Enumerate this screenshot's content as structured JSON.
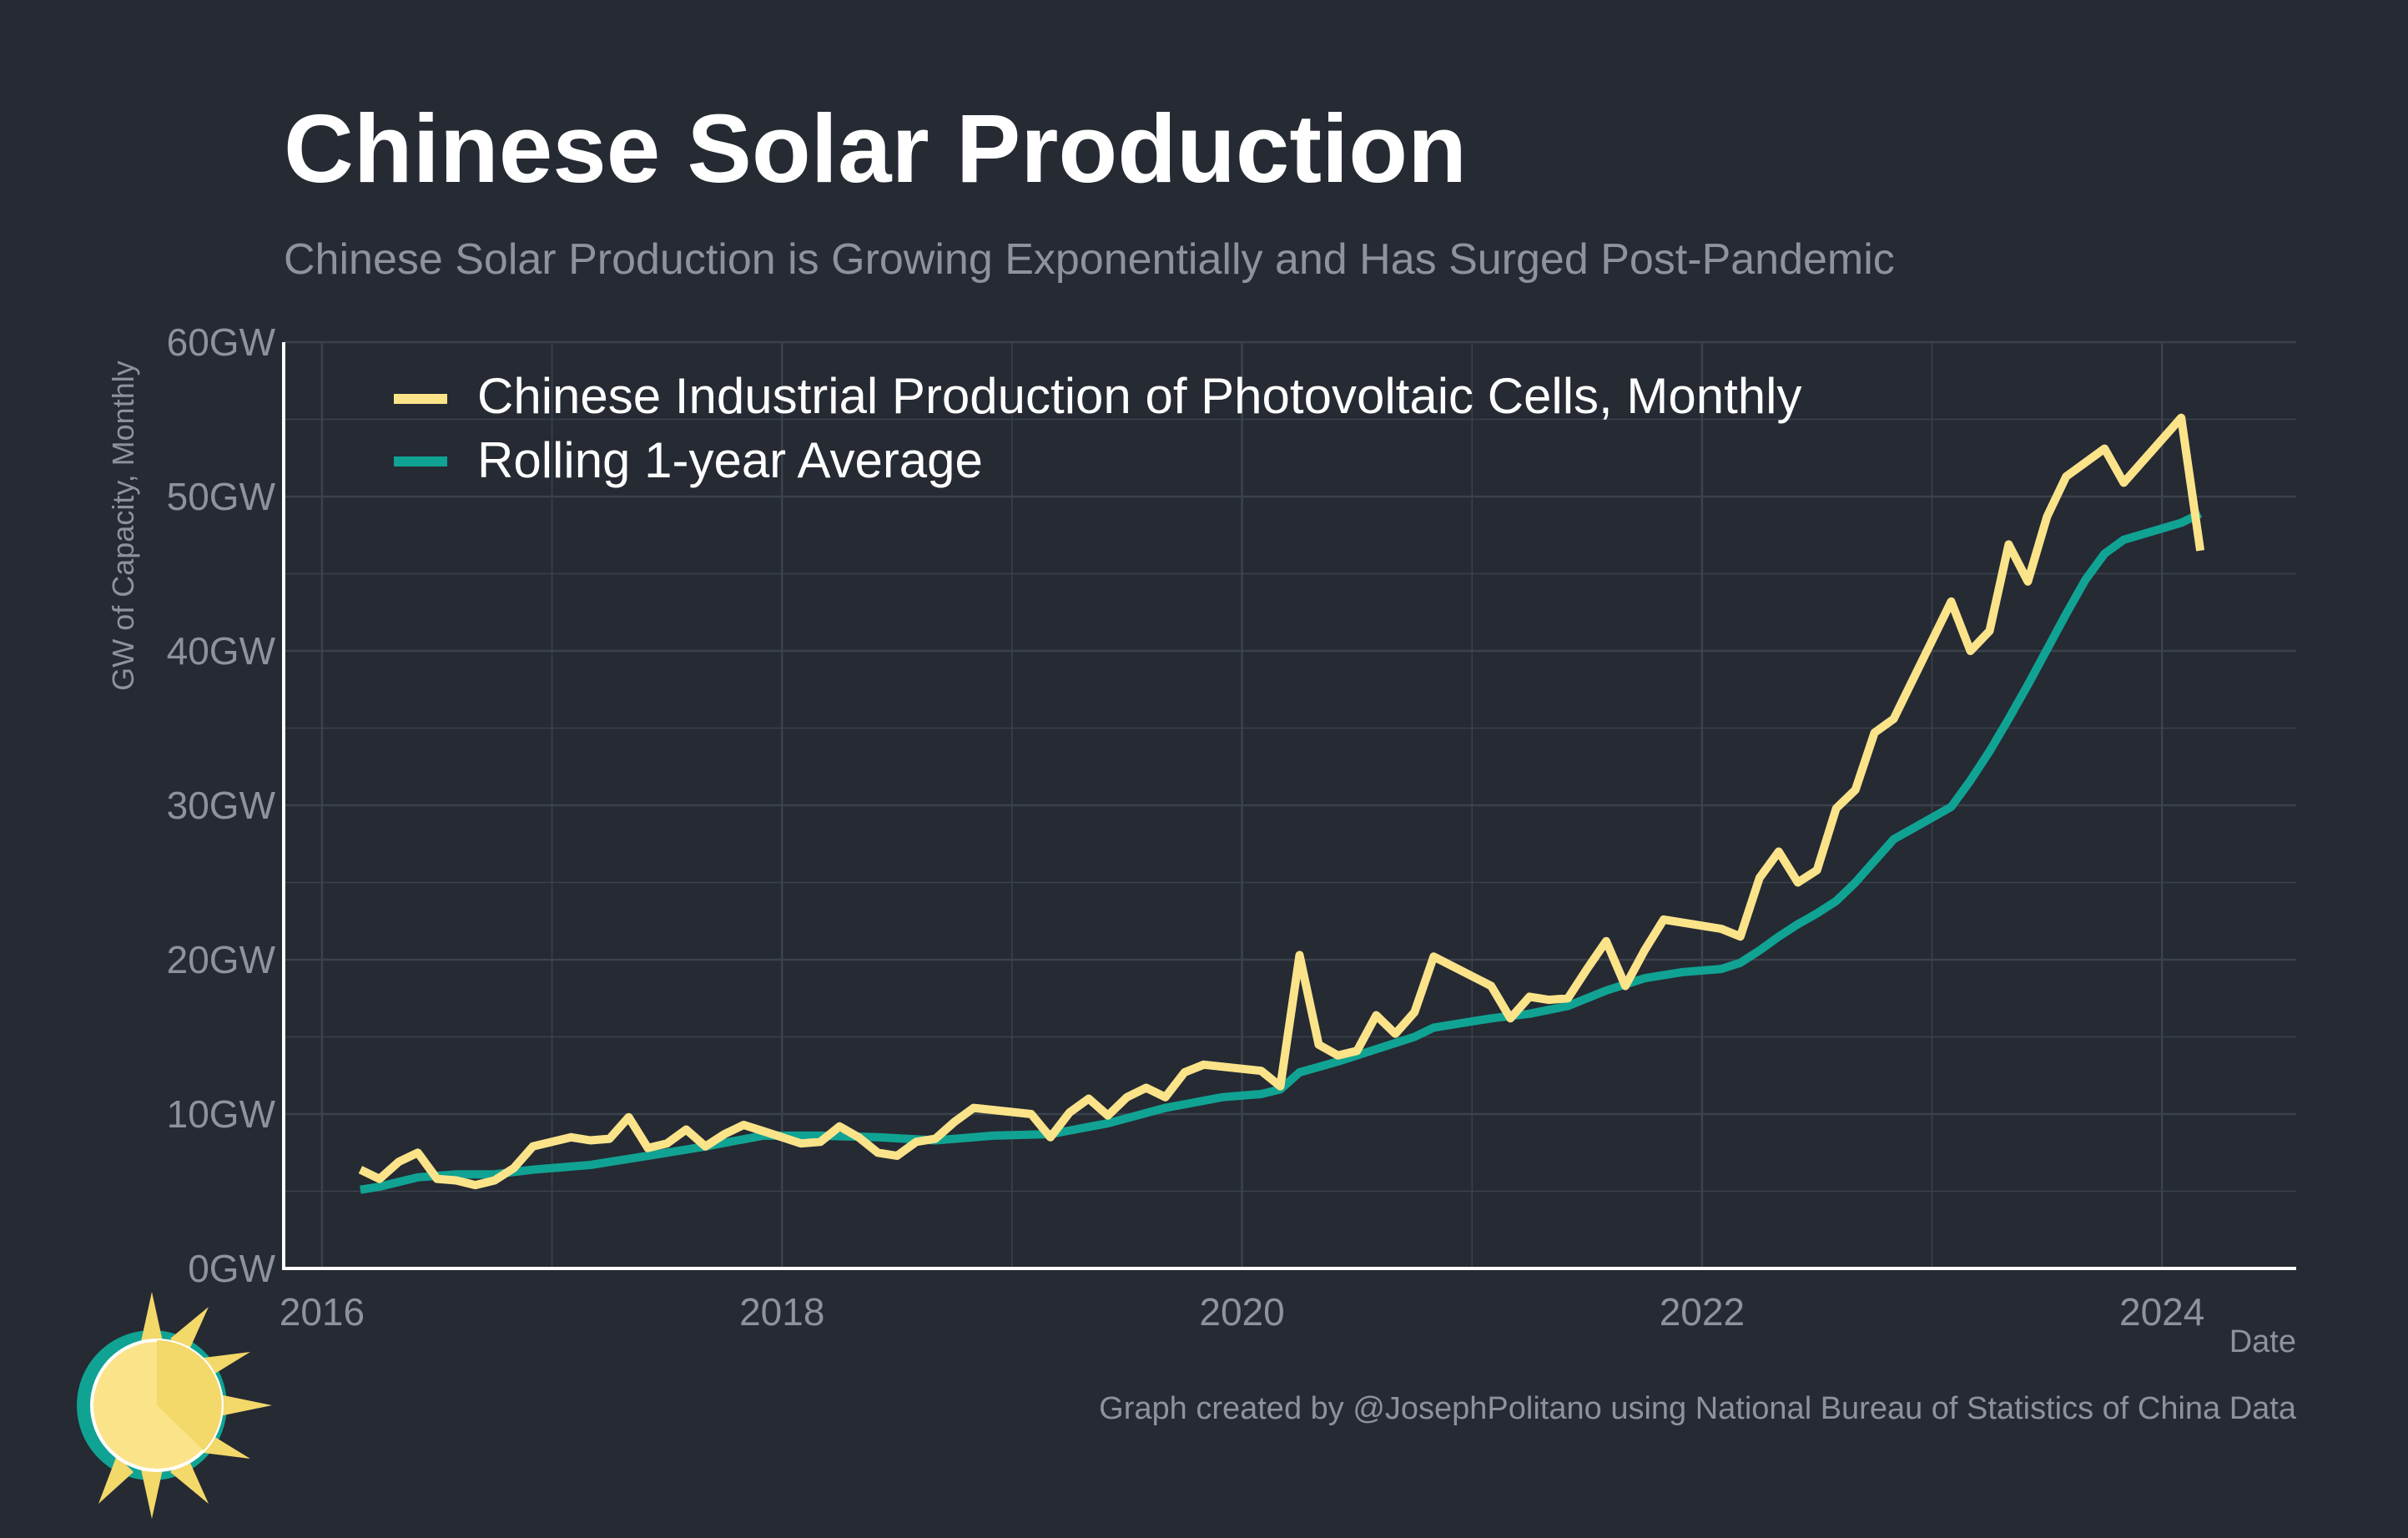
{
  "title": "Chinese Solar Production",
  "subtitle": "Chinese Solar Production is Growing Exponentially and Has Surged Post-Pandemic",
  "credit": "Graph created by @JosephPolitano using National Bureau of Statistics of China Data",
  "colors": {
    "background": "#252a33",
    "monthly": "#fbe38a",
    "rolling": "#10a393",
    "grid": "#3c424c",
    "axis": "#ffffff",
    "muted": "#8e939b"
  },
  "chart_data": {
    "type": "line",
    "xlabel": "Date",
    "ylabel": "GW of Capacity, Monthly",
    "xlim": [
      "2015-11-01",
      "2024-08-01"
    ],
    "ylim": [
      0,
      60
    ],
    "grid": true,
    "legend_position": "top-left",
    "y_ticks": [
      {
        "value": 0,
        "label": "0GW"
      },
      {
        "value": 10,
        "label": "10GW"
      },
      {
        "value": 20,
        "label": "20GW"
      },
      {
        "value": 30,
        "label": "30GW"
      },
      {
        "value": 40,
        "label": "40GW"
      },
      {
        "value": 50,
        "label": "50GW"
      },
      {
        "value": 60,
        "label": "60GW"
      }
    ],
    "x_ticks": [
      {
        "value": "2016-01-01",
        "label": "2016"
      },
      {
        "value": "2018-01-01",
        "label": "2018"
      },
      {
        "value": "2020-01-01",
        "label": "2020"
      },
      {
        "value": "2022-01-01",
        "label": "2022"
      },
      {
        "value": "2024-01-01",
        "label": "2024"
      }
    ],
    "series": [
      {
        "name": "Chinese Industrial Production of Photovoltaic Cells, Monthly",
        "color": "#fbe38a",
        "points": [
          [
            "2016-03-01",
            6.4
          ],
          [
            "2016-04-01",
            5.8
          ],
          [
            "2016-05-01",
            6.9
          ],
          [
            "2016-06-01",
            7.5
          ],
          [
            "2016-07-01",
            5.8
          ],
          [
            "2016-08-01",
            5.7
          ],
          [
            "2016-09-01",
            5.4
          ],
          [
            "2016-10-01",
            5.7
          ],
          [
            "2016-11-01",
            6.5
          ],
          [
            "2016-12-01",
            7.9
          ],
          [
            "2017-02-01",
            8.5
          ],
          [
            "2017-03-01",
            8.3
          ],
          [
            "2017-04-01",
            8.4
          ],
          [
            "2017-05-01",
            9.8
          ],
          [
            "2017-06-01",
            7.8
          ],
          [
            "2017-07-01",
            8.1
          ],
          [
            "2017-08-01",
            9.0
          ],
          [
            "2017-09-01",
            7.9
          ],
          [
            "2017-10-01",
            8.7
          ],
          [
            "2017-11-01",
            9.3
          ],
          [
            "2017-12-01",
            8.9
          ],
          [
            "2018-01-01",
            8.5
          ],
          [
            "2018-02-01",
            8.1
          ],
          [
            "2018-03-01",
            8.2
          ],
          [
            "2018-04-01",
            9.2
          ],
          [
            "2018-05-01",
            8.5
          ],
          [
            "2018-06-01",
            7.5
          ],
          [
            "2018-07-01",
            7.3
          ],
          [
            "2018-08-01",
            8.2
          ],
          [
            "2018-09-01",
            8.4
          ],
          [
            "2018-10-01",
            9.5
          ],
          [
            "2018-11-01",
            10.4
          ],
          [
            "2019-02-01",
            10.0
          ],
          [
            "2019-03-01",
            8.5
          ],
          [
            "2019-04-01",
            10.1
          ],
          [
            "2019-05-01",
            11.0
          ],
          [
            "2019-06-01",
            9.9
          ],
          [
            "2019-07-01",
            11.1
          ],
          [
            "2019-08-01",
            11.7
          ],
          [
            "2019-09-01",
            11.1
          ],
          [
            "2019-10-01",
            12.7
          ],
          [
            "2019-11-01",
            13.2
          ],
          [
            "2020-02-01",
            12.8
          ],
          [
            "2020-03-01",
            11.8
          ],
          [
            "2020-04-01",
            20.3
          ],
          [
            "2020-05-01",
            14.5
          ],
          [
            "2020-06-01",
            13.8
          ],
          [
            "2020-07-01",
            14.1
          ],
          [
            "2020-08-01",
            16.4
          ],
          [
            "2020-09-01",
            15.2
          ],
          [
            "2020-10-01",
            16.6
          ],
          [
            "2020-11-01",
            20.2
          ],
          [
            "2021-02-01",
            18.3
          ],
          [
            "2021-03-01",
            16.2
          ],
          [
            "2021-04-01",
            17.6
          ],
          [
            "2021-05-01",
            17.4
          ],
          [
            "2021-06-01",
            17.5
          ],
          [
            "2021-07-01",
            19.4
          ],
          [
            "2021-08-01",
            21.2
          ],
          [
            "2021-09-01",
            18.3
          ],
          [
            "2021-10-01",
            20.6
          ],
          [
            "2021-11-01",
            22.6
          ],
          [
            "2022-02-01",
            22.0
          ],
          [
            "2022-03-01",
            21.5
          ],
          [
            "2022-04-01",
            25.3
          ],
          [
            "2022-05-01",
            27.0
          ],
          [
            "2022-06-01",
            25.0
          ],
          [
            "2022-07-01",
            25.8
          ],
          [
            "2022-08-01",
            29.8
          ],
          [
            "2022-09-01",
            31.0
          ],
          [
            "2022-10-01",
            34.7
          ],
          [
            "2022-11-01",
            35.6
          ],
          [
            "2023-02-01",
            43.2
          ],
          [
            "2023-03-01",
            40.0
          ],
          [
            "2023-04-01",
            41.3
          ],
          [
            "2023-05-01",
            46.9
          ],
          [
            "2023-06-01",
            44.5
          ],
          [
            "2023-07-01",
            48.7
          ],
          [
            "2023-08-01",
            51.3
          ],
          [
            "2023-10-01",
            53.1
          ],
          [
            "2023-11-01",
            50.9
          ],
          [
            "2024-02-01",
            55.1
          ],
          [
            "2024-03-01",
            46.5
          ]
        ]
      },
      {
        "name": "Rolling 1-year Average",
        "color": "#10a393",
        "points": [
          [
            "2016-03-01",
            5.1
          ],
          [
            "2016-04-01",
            5.3
          ],
          [
            "2016-05-01",
            5.6
          ],
          [
            "2016-06-01",
            5.9
          ],
          [
            "2016-08-01",
            6.1
          ],
          [
            "2016-10-01",
            6.1
          ],
          [
            "2016-12-01",
            6.4
          ],
          [
            "2017-03-01",
            6.7
          ],
          [
            "2017-06-01",
            7.3
          ],
          [
            "2017-09-01",
            7.9
          ],
          [
            "2017-12-01",
            8.6
          ],
          [
            "2018-03-01",
            8.6
          ],
          [
            "2018-06-01",
            8.5
          ],
          [
            "2018-09-01",
            8.3
          ],
          [
            "2018-12-01",
            8.6
          ],
          [
            "2019-03-01",
            8.7
          ],
          [
            "2019-06-01",
            9.4
          ],
          [
            "2019-09-01",
            10.4
          ],
          [
            "2019-12-01",
            11.1
          ],
          [
            "2020-02-01",
            11.3
          ],
          [
            "2020-03-01",
            11.6
          ],
          [
            "2020-04-01",
            12.7
          ],
          [
            "2020-06-01",
            13.4
          ],
          [
            "2020-08-01",
            14.2
          ],
          [
            "2020-10-01",
            15.0
          ],
          [
            "2020-11-01",
            15.6
          ],
          [
            "2021-02-01",
            16.2
          ],
          [
            "2021-04-01",
            16.5
          ],
          [
            "2021-06-01",
            17.0
          ],
          [
            "2021-08-01",
            18.0
          ],
          [
            "2021-10-01",
            18.8
          ],
          [
            "2021-12-01",
            19.2
          ],
          [
            "2022-02-01",
            19.4
          ],
          [
            "2022-03-01",
            19.8
          ],
          [
            "2022-04-01",
            20.6
          ],
          [
            "2022-05-01",
            21.5
          ],
          [
            "2022-06-01",
            22.3
          ],
          [
            "2022-07-01",
            23.0
          ],
          [
            "2022-08-01",
            23.8
          ],
          [
            "2022-09-01",
            25.0
          ],
          [
            "2022-10-01",
            26.4
          ],
          [
            "2022-11-01",
            27.8
          ],
          [
            "2023-02-01",
            29.9
          ],
          [
            "2023-03-01",
            31.6
          ],
          [
            "2023-04-01",
            33.5
          ],
          [
            "2023-05-01",
            35.6
          ],
          [
            "2023-06-01",
            37.8
          ],
          [
            "2023-07-01",
            40.1
          ],
          [
            "2023-08-01",
            42.4
          ],
          [
            "2023-09-01",
            44.6
          ],
          [
            "2023-10-01",
            46.3
          ],
          [
            "2023-11-01",
            47.2
          ],
          [
            "2024-02-01",
            48.3
          ],
          [
            "2024-03-01",
            48.9
          ]
        ]
      }
    ]
  }
}
